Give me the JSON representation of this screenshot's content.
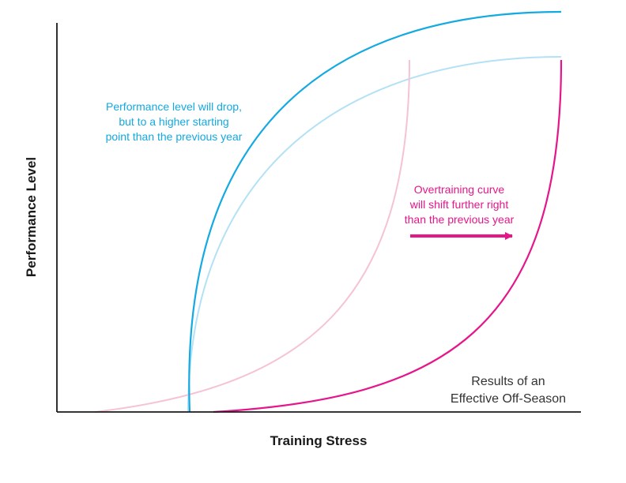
{
  "diagram": {
    "x_axis_label": "Training Stress",
    "y_axis_label": "Performance Level",
    "annotations": {
      "performance_note": [
        "Performance level will drop,",
        "but to a higher starting",
        "point than the previous year"
      ],
      "overtraining_note": [
        "Overtraining curve",
        "will shift further right",
        "than the previous year"
      ],
      "caption": [
        "Results of an",
        "Effective Off-Season"
      ]
    },
    "colors": {
      "performance_current": "#13a9e1",
      "performance_previous": "#b3e1f5",
      "overtraining_current": "#e6168a",
      "overtraining_previous": "#f5c3d6",
      "axes": "#1a1a1a"
    }
  }
}
